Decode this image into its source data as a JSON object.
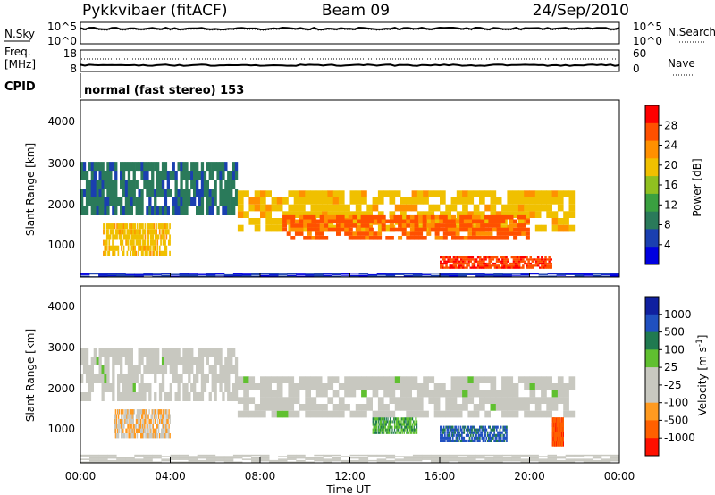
{
  "header": {
    "radar": "Pykkvibaer (fitACF)",
    "beam": "Beam 09",
    "date": "24/Sep/2010"
  },
  "noise_panel": {
    "left_label": "N.Sky",
    "left_ticks": [
      "10^5",
      "10^0"
    ],
    "right_ticks": [
      "10^5",
      "10^0"
    ],
    "right_label": "N.Search"
  },
  "freq_panel": {
    "left_label_1": "Freq.",
    "left_label_2": "[MHz]",
    "left_ticks": [
      "18",
      "8"
    ],
    "right_ticks": [
      "60",
      "0"
    ],
    "right_label": "Nave",
    "cpid_label": "CPID",
    "mode_text": "normal (fast stereo) 153"
  },
  "x_axis": {
    "label": "Time UT",
    "ticks": [
      "00:00",
      "04:00",
      "08:00",
      "12:00",
      "16:00",
      "20:00",
      "00:00"
    ]
  },
  "power_panel": {
    "ylabel": "Slant Range [km]",
    "yticks": [
      "4000",
      "3000",
      "2000",
      "1000"
    ],
    "colorbar_label": "Power [dB]",
    "colorbar_ticks": [
      "28",
      "24",
      "20",
      "16",
      "12",
      "8",
      "4"
    ],
    "colors": [
      "#0000e0",
      "#1a3fb0",
      "#2a7a5a",
      "#3aa040",
      "#90c020",
      "#f0c000",
      "#ff9000",
      "#ff5000",
      "#ff0000"
    ]
  },
  "velocity_panel": {
    "ylabel": "Slant Range [km]",
    "yticks": [
      "4000",
      "3000",
      "2000",
      "1000"
    ],
    "colorbar_label": "Velocity [m s",
    "colorbar_sup": "-1",
    "colorbar_label_end": "]",
    "colorbar_ticks": [
      "1000",
      "500",
      "100",
      "25",
      "-25",
      "-100",
      "-500",
      "-1000"
    ],
    "colors": [
      "#1020a0",
      "#2050c0",
      "#207a50",
      "#60c030",
      "#c8c8c0",
      "#c8c8c0",
      "#ff9a20",
      "#ff6000",
      "#ff1000"
    ],
    "ground_scatter_color": "#c8c8c0"
  },
  "chart_data": [
    {
      "type": "heatmap",
      "title": "",
      "xlabel": "Time UT",
      "ylabel": "Slant Range [km]",
      "xlim_hours": [
        0,
        24
      ],
      "ylim_km": [
        200,
        4500
      ],
      "value_label": "Power [dB]",
      "zlim": [
        0,
        32
      ],
      "bands": [
        {
          "t_start": 0.0,
          "t_end": 7.0,
          "r_start": 1700,
          "r_end": 3000,
          "value": 8
        },
        {
          "t_start": 1.0,
          "t_end": 4.0,
          "r_start": 700,
          "r_end": 1500,
          "value": 20
        },
        {
          "t_start": 7.0,
          "t_end": 22.0,
          "r_start": 1300,
          "r_end": 2300,
          "value": 20
        },
        {
          "t_start": 9.0,
          "t_end": 20.0,
          "r_start": 1100,
          "r_end": 1700,
          "value": 26
        },
        {
          "t_start": 16.0,
          "t_end": 21.0,
          "r_start": 400,
          "r_end": 700,
          "value": 28
        },
        {
          "t_start": 0.0,
          "t_end": 24.0,
          "r_start": 200,
          "r_end": 300,
          "value": 4
        }
      ]
    },
    {
      "type": "heatmap",
      "title": "",
      "xlabel": "Time UT",
      "ylabel": "Slant Range [km]",
      "xlim_hours": [
        0,
        24
      ],
      "ylim_km": [
        200,
        4500
      ],
      "value_label": "Velocity [m s-1]",
      "zlim": [
        -1000,
        1000
      ],
      "bands": [
        {
          "t_start": 0.0,
          "t_end": 7.0,
          "r_start": 1700,
          "r_end": 3000,
          "value": 0
        },
        {
          "t_start": 7.0,
          "t_end": 22.0,
          "r_start": 1300,
          "r_end": 2300,
          "value": 0
        },
        {
          "t_start": 1.5,
          "t_end": 4.0,
          "r_start": 800,
          "r_end": 1500,
          "value": -300
        },
        {
          "t_start": 13.0,
          "t_end": 15.0,
          "r_start": 900,
          "r_end": 1300,
          "value": 300
        },
        {
          "t_start": 16.0,
          "t_end": 19.0,
          "r_start": 700,
          "r_end": 1100,
          "value": 600
        },
        {
          "t_start": 21.0,
          "t_end": 21.5,
          "r_start": 600,
          "r_end": 1300,
          "value": -700
        },
        {
          "t_start": 0.0,
          "t_end": 24.0,
          "r_start": 200,
          "r_end": 400,
          "value": -100
        }
      ]
    }
  ]
}
